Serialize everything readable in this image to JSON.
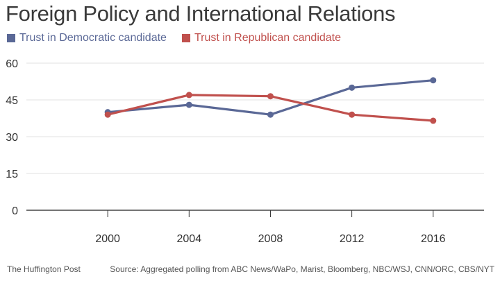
{
  "chart_data": {
    "type": "line",
    "title": "Foreign Policy and International Relations",
    "x": [
      2000,
      2004,
      2008,
      2012,
      2016
    ],
    "series": [
      {
        "name": "Trust in Democratic candidate",
        "color": "#5a6896",
        "values": [
          40,
          43,
          39,
          50,
          53
        ]
      },
      {
        "name": "Trust in Republican candidate",
        "color": "#c0504d",
        "values": [
          39,
          47,
          46.5,
          39,
          36.5
        ]
      }
    ],
    "xlim": [
      1996,
      2018.5
    ],
    "ylim": [
      0,
      60
    ],
    "yticks": [
      0,
      15,
      30,
      45,
      60
    ],
    "xticks": [
      2000,
      2004,
      2008,
      2012,
      2016
    ],
    "grid": true,
    "legend_position": "top-left"
  },
  "footer": {
    "publisher": "The Huffington Post",
    "source": "Source: Aggregated polling from ABC News/WaPo, Marist, Bloomberg, NBC/WSJ, CNN/ORC, CBS/NYT"
  }
}
